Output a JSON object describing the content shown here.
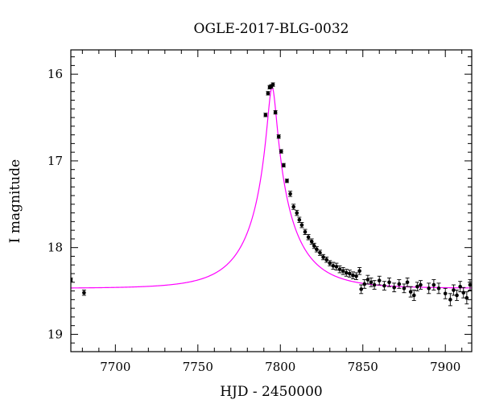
{
  "chart_data": {
    "type": "scatter",
    "title": "OGLE-2017-BLG-0032",
    "xlabel": "HJD - 2450000",
    "ylabel": "I magnitude",
    "xlim": [
      7673,
      7916
    ],
    "ylim": [
      19.2,
      15.72
    ],
    "y_inverted": true,
    "x_ticks": [
      7700,
      7750,
      7800,
      7850,
      7900
    ],
    "y_ticks": [
      16,
      17,
      18,
      19
    ],
    "grid": false,
    "colors": {
      "data": "#000000",
      "model": "#ff00ff"
    },
    "model": {
      "name": "",
      "t0": 7795.0,
      "tE": 30.0,
      "u0": 0.086,
      "baseline_mag": 18.47,
      "blend_fraction": 0.7
    },
    "series": [
      {
        "kind": "observed",
        "x": [
          7673,
          7681,
          7791,
          7792.5,
          7793.5,
          7794.5,
          7795.5,
          7797,
          7799,
          7800.5,
          7802,
          7804,
          7806,
          7808,
          7810,
          7811.5,
          7813,
          7815,
          7817,
          7819,
          7820.5,
          7822,
          7824,
          7826,
          7828,
          7830,
          7832,
          7834,
          7836,
          7838,
          7840,
          7842,
          7844,
          7846,
          7848,
          7849,
          7851,
          7853,
          7855,
          7857,
          7860,
          7863,
          7866,
          7869,
          7872,
          7875,
          7877,
          7879,
          7881,
          7883,
          7885,
          7890,
          7893,
          7896,
          7900,
          7903,
          7905,
          7907,
          7909,
          7911,
          7913,
          7915
        ],
        "y": [
          18.37,
          18.52,
          16.47,
          16.22,
          16.15,
          16.14,
          16.12,
          16.44,
          16.72,
          16.89,
          17.05,
          17.23,
          17.38,
          17.53,
          17.6,
          17.68,
          17.74,
          17.82,
          17.88,
          17.93,
          17.98,
          18.02,
          18.06,
          18.11,
          18.14,
          18.18,
          18.21,
          18.22,
          18.25,
          18.27,
          18.29,
          18.3,
          18.32,
          18.33,
          18.27,
          18.48,
          18.42,
          18.37,
          18.4,
          18.43,
          18.38,
          18.44,
          18.4,
          18.46,
          18.42,
          18.47,
          18.4,
          18.51,
          18.55,
          18.45,
          18.43,
          18.47,
          18.43,
          18.47,
          18.53,
          18.6,
          18.49,
          18.55,
          18.45,
          18.52,
          18.58,
          18.43
        ],
        "yerr": [
          0.02,
          0.03,
          0.02,
          0.02,
          0.02,
          0.02,
          0.02,
          0.02,
          0.02,
          0.02,
          0.02,
          0.02,
          0.03,
          0.03,
          0.03,
          0.03,
          0.03,
          0.03,
          0.03,
          0.03,
          0.03,
          0.03,
          0.03,
          0.03,
          0.03,
          0.03,
          0.04,
          0.04,
          0.04,
          0.04,
          0.04,
          0.04,
          0.04,
          0.04,
          0.04,
          0.05,
          0.05,
          0.05,
          0.05,
          0.05,
          0.05,
          0.05,
          0.05,
          0.05,
          0.05,
          0.05,
          0.05,
          0.06,
          0.06,
          0.05,
          0.05,
          0.06,
          0.06,
          0.06,
          0.06,
          0.07,
          0.06,
          0.06,
          0.06,
          0.06,
          0.07,
          0.06
        ]
      }
    ]
  }
}
